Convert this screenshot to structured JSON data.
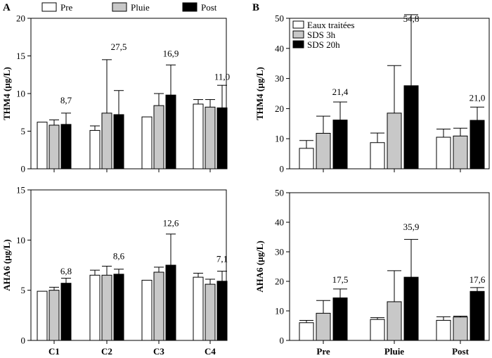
{
  "figure": {
    "panels": [
      {
        "letter": "A"
      },
      {
        "letter": "B"
      }
    ]
  },
  "colors": {
    "white": "#ffffff",
    "gray": "#c8c8c8",
    "black": "#000000"
  },
  "chart_data": [
    {
      "type": "bar",
      "panel": "A",
      "title": "",
      "xlabel": "",
      "ylabel": "THM4 (µg/L)",
      "ylim": [
        0,
        20
      ],
      "yticks": [
        0,
        5,
        10,
        15,
        20
      ],
      "categories": [
        "C1",
        "C2",
        "C3",
        "C4"
      ],
      "series": [
        {
          "name": "Pre",
          "color": "white",
          "values": [
            6.2,
            5.1,
            6.9,
            8.6
          ],
          "errors": [
            0,
            0.6,
            0,
            0.6
          ]
        },
        {
          "name": "Pluie",
          "color": "gray",
          "values": [
            5.8,
            7.4,
            8.4,
            8.2
          ],
          "errors": [
            0.7,
            7.1,
            1.6,
            1.0
          ]
        },
        {
          "name": "Post",
          "color": "black",
          "values": [
            5.9,
            7.2,
            9.8,
            8.1
          ],
          "errors": [
            1.5,
            3.2,
            4.0,
            3.0
          ]
        }
      ],
      "annotations": [
        {
          "category": "C1",
          "text": "8,7",
          "y": 8.7
        },
        {
          "category": "C2",
          "text": "27,5",
          "y": 15.8
        },
        {
          "category": "C3",
          "text": "16,9",
          "y": 14.9
        },
        {
          "category": "C4",
          "text": "11,0",
          "y": 11.8
        }
      ],
      "legend": "top"
    },
    {
      "type": "bar",
      "panel": "A",
      "title": "",
      "xlabel": "",
      "ylabel": "AHA6 (µg/L)",
      "ylim": [
        0,
        15
      ],
      "yticks": [
        0,
        5,
        10,
        15
      ],
      "categories": [
        "C1",
        "C2",
        "C3",
        "C4"
      ],
      "series": [
        {
          "name": "Pre",
          "color": "white",
          "values": [
            4.9,
            6.5,
            6.0,
            6.3
          ],
          "errors": [
            0,
            0.5,
            0,
            0.4
          ]
        },
        {
          "name": "Pluie",
          "color": "gray",
          "values": [
            5.0,
            6.5,
            6.8,
            5.6
          ],
          "errors": [
            0.3,
            0.9,
            0.5,
            0.5
          ]
        },
        {
          "name": "Post",
          "color": "black",
          "values": [
            5.7,
            6.6,
            7.5,
            5.9
          ],
          "errors": [
            0.5,
            0.5,
            3.1,
            1.0
          ]
        }
      ],
      "annotations": [
        {
          "category": "C1",
          "text": "6,8",
          "y": 6.6
        },
        {
          "category": "C2",
          "text": "8,6",
          "y": 8.1
        },
        {
          "category": "C3",
          "text": "12,6",
          "y": 11.4
        },
        {
          "category": "C4",
          "text": "7,1",
          "y": 7.8
        }
      ]
    },
    {
      "type": "bar",
      "panel": "B",
      "title": "",
      "xlabel": "",
      "ylabel": "THM4 (µg/L)",
      "ylim": [
        0,
        50
      ],
      "yticks": [
        0,
        10,
        20,
        30,
        40,
        50
      ],
      "categories": [
        "Pre",
        "Pluie",
        "Post"
      ],
      "series": [
        {
          "name": "Eaux traitées",
          "color": "white",
          "values": [
            6.8,
            8.7,
            10.5
          ],
          "errors": [
            2.6,
            3.2,
            2.7
          ]
        },
        {
          "name": "SDS 3h",
          "color": "gray",
          "values": [
            11.8,
            18.5,
            10.9
          ],
          "errors": [
            5.7,
            15.8,
            2.6
          ]
        },
        {
          "name": "SDS 20h",
          "color": "black",
          "values": [
            16.2,
            27.6,
            16.1
          ],
          "errors": [
            6.0,
            23.6,
            4.4
          ]
        }
      ],
      "annotations": [
        {
          "category": "Pre",
          "text": "21,4",
          "y": 24.5
        },
        {
          "category": "Pluie",
          "text": "54,8",
          "y": 48.8
        },
        {
          "category": "Post",
          "text": "21,0",
          "y": 22.5
        }
      ],
      "legend": "top-left"
    },
    {
      "type": "bar",
      "panel": "B",
      "title": "",
      "xlabel": "",
      "ylabel": "AHA6 (µg/L)",
      "ylim": [
        0,
        50
      ],
      "yticks": [
        0,
        10,
        20,
        30,
        40,
        50
      ],
      "categories": [
        "Pre",
        "Pluie",
        "Post"
      ],
      "series": [
        {
          "name": "Eaux traitées",
          "color": "white",
          "values": [
            6.0,
            7.1,
            6.8
          ],
          "errors": [
            0.8,
            0.6,
            1.2
          ]
        },
        {
          "name": "SDS 3h",
          "color": "gray",
          "values": [
            9.2,
            13.1,
            7.9
          ],
          "errors": [
            4.3,
            10.5,
            0.3
          ]
        },
        {
          "name": "SDS 20h",
          "color": "black",
          "values": [
            14.4,
            21.4,
            16.6
          ],
          "errors": [
            3.0,
            12.8,
            1.3
          ]
        }
      ],
      "annotations": [
        {
          "category": "Pre",
          "text": "17,5",
          "y": 19.5
        },
        {
          "category": "Pluie",
          "text": "35,9",
          "y": 37.4
        },
        {
          "category": "Post",
          "text": "17,6",
          "y": 19.5
        }
      ]
    }
  ]
}
